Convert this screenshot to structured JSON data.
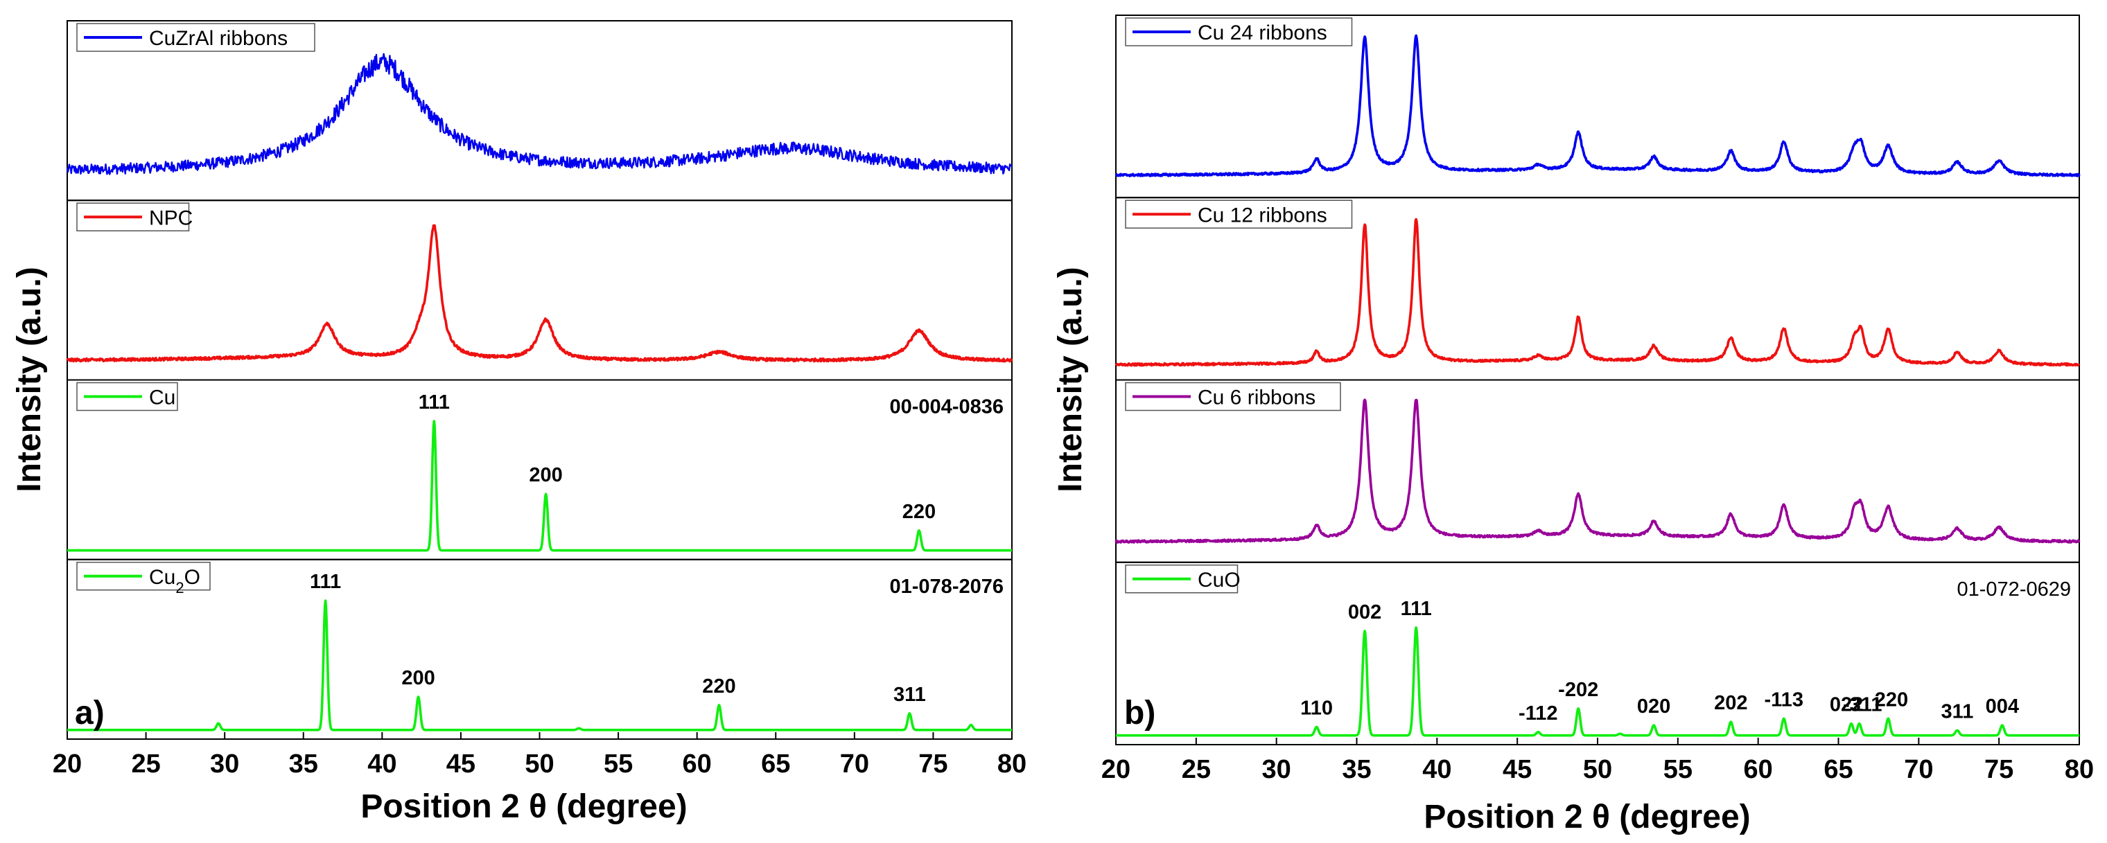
{
  "chart_data": [
    {
      "type": "line",
      "panel_label": "a)",
      "xlabel": "Position 2 θ (degree)",
      "ylabel": "Intensity (a.u.)",
      "xlim": [
        20,
        80
      ],
      "xticks": [
        "20",
        "25",
        "30",
        "35",
        "40",
        "45",
        "50",
        "55",
        "60",
        "65",
        "70",
        "75",
        "80"
      ],
      "subplots": [
        {
          "legend": "CuZrAl ribbons",
          "color": "#0000ee",
          "kind": "noisy",
          "ref_code": "",
          "baseline": 0.14,
          "noise": 0.045,
          "peaks": [
            {
              "x": 40.0,
              "h": 0.66,
              "w": 3.2
            },
            {
              "x": 66.0,
              "h": 0.14,
              "w": 6.0
            }
          ],
          "annotations": []
        },
        {
          "legend": "NPC",
          "color": "#ee1111",
          "kind": "smooth",
          "ref_code": "",
          "baseline": 0.09,
          "noise": 0.008,
          "peaks": [
            {
              "x": 36.5,
              "h": 0.2,
              "w": 0.6
            },
            {
              "x": 42.4,
              "h": 0.1,
              "w": 0.5
            },
            {
              "x": 43.3,
              "h": 0.78,
              "w": 0.45
            },
            {
              "x": 50.4,
              "h": 0.24,
              "w": 0.6
            },
            {
              "x": 61.4,
              "h": 0.05,
              "w": 1.0
            },
            {
              "x": 74.1,
              "h": 0.18,
              "w": 0.8
            },
            {
              "x": 35.0,
              "h": 0.02,
              "w": 8.0
            }
          ],
          "annotations": []
        },
        {
          "legend": "Cu",
          "color": "#11ee11",
          "kind": "stick",
          "ref_code": "00-004-0836",
          "baseline": 0.03,
          "noise": 0.0,
          "peaks": [
            {
              "x": 43.3,
              "h": 0.78,
              "w": 0.12
            },
            {
              "x": 50.4,
              "h": 0.34,
              "w": 0.12
            },
            {
              "x": 74.1,
              "h": 0.12,
              "w": 0.12
            }
          ],
          "annotations": [
            {
              "x": 43.3,
              "text": "111"
            },
            {
              "x": 50.4,
              "text": "200"
            },
            {
              "x": 74.1,
              "text": "220"
            }
          ]
        },
        {
          "legend": "Cu2O",
          "color": "#11ee11",
          "kind": "stick",
          "ref_code": "01-078-2076",
          "baseline": 0.03,
          "noise": 0.0,
          "peaks": [
            {
              "x": 29.6,
              "h": 0.04,
              "w": 0.12
            },
            {
              "x": 36.4,
              "h": 0.78,
              "w": 0.12
            },
            {
              "x": 42.3,
              "h": 0.2,
              "w": 0.12
            },
            {
              "x": 52.5,
              "h": 0.01,
              "w": 0.12
            },
            {
              "x": 61.4,
              "h": 0.15,
              "w": 0.12
            },
            {
              "x": 73.5,
              "h": 0.1,
              "w": 0.12
            },
            {
              "x": 77.4,
              "h": 0.03,
              "w": 0.12
            }
          ],
          "annotations": [
            {
              "x": 36.4,
              "text": "111"
            },
            {
              "x": 42.3,
              "text": "200"
            },
            {
              "x": 61.4,
              "text": "220"
            },
            {
              "x": 73.5,
              "text": "311"
            }
          ]
        }
      ]
    },
    {
      "type": "line",
      "panel_label": "b)",
      "xlabel": "Position 2 θ (degree)",
      "ylabel": "Intensity (a.u.)",
      "xlim": [
        20,
        80
      ],
      "xticks": [
        "20",
        "25",
        "30",
        "35",
        "40",
        "45",
        "50",
        "55",
        "60",
        "65",
        "70",
        "75",
        "80"
      ],
      "subplots": [
        {
          "legend": "Cu 24 ribbons",
          "color": "#0000ee",
          "kind": "smooth",
          "ref_code": "",
          "baseline": 0.1,
          "noise": 0.006,
          "peaks": [
            {
              "x": 32.5,
              "h": 0.08,
              "w": 0.25
            },
            {
              "x": 35.5,
              "h": 0.8,
              "w": 0.3
            },
            {
              "x": 38.7,
              "h": 0.8,
              "w": 0.3
            },
            {
              "x": 46.3,
              "h": 0.03,
              "w": 0.3
            },
            {
              "x": 48.8,
              "h": 0.22,
              "w": 0.3
            },
            {
              "x": 53.5,
              "h": 0.08,
              "w": 0.3
            },
            {
              "x": 58.3,
              "h": 0.12,
              "w": 0.3
            },
            {
              "x": 61.6,
              "h": 0.18,
              "w": 0.3
            },
            {
              "x": 66.0,
              "h": 0.12,
              "w": 0.35
            },
            {
              "x": 66.4,
              "h": 0.14,
              "w": 0.3
            },
            {
              "x": 68.1,
              "h": 0.16,
              "w": 0.35
            },
            {
              "x": 72.4,
              "h": 0.07,
              "w": 0.35
            },
            {
              "x": 75.0,
              "h": 0.08,
              "w": 0.4
            },
            {
              "x": 50.0,
              "h": 0.04,
              "w": 15.0
            }
          ],
          "annotations": []
        },
        {
          "legend": "Cu 12 ribbons",
          "color": "#ee1111",
          "kind": "smooth",
          "ref_code": "",
          "baseline": 0.06,
          "noise": 0.006,
          "peaks": [
            {
              "x": 32.5,
              "h": 0.07,
              "w": 0.2
            },
            {
              "x": 35.5,
              "h": 0.82,
              "w": 0.25
            },
            {
              "x": 38.7,
              "h": 0.85,
              "w": 0.25
            },
            {
              "x": 46.3,
              "h": 0.03,
              "w": 0.3
            },
            {
              "x": 48.8,
              "h": 0.26,
              "w": 0.25
            },
            {
              "x": 53.5,
              "h": 0.09,
              "w": 0.3
            },
            {
              "x": 58.3,
              "h": 0.14,
              "w": 0.3
            },
            {
              "x": 61.6,
              "h": 0.2,
              "w": 0.3
            },
            {
              "x": 66.0,
              "h": 0.12,
              "w": 0.3
            },
            {
              "x": 66.4,
              "h": 0.17,
              "w": 0.25
            },
            {
              "x": 68.1,
              "h": 0.2,
              "w": 0.3
            },
            {
              "x": 72.4,
              "h": 0.07,
              "w": 0.3
            },
            {
              "x": 75.0,
              "h": 0.08,
              "w": 0.35
            },
            {
              "x": 50.0,
              "h": 0.03,
              "w": 15.0
            }
          ],
          "annotations": []
        },
        {
          "legend": "Cu 6 ribbons",
          "color": "#990099",
          "kind": "smooth",
          "ref_code": "",
          "baseline": 0.09,
          "noise": 0.006,
          "peaks": [
            {
              "x": 32.5,
              "h": 0.08,
              "w": 0.25
            },
            {
              "x": 35.5,
              "h": 0.82,
              "w": 0.3
            },
            {
              "x": 38.7,
              "h": 0.82,
              "w": 0.3
            },
            {
              "x": 46.3,
              "h": 0.03,
              "w": 0.3
            },
            {
              "x": 48.8,
              "h": 0.25,
              "w": 0.3
            },
            {
              "x": 53.5,
              "h": 0.09,
              "w": 0.3
            },
            {
              "x": 58.3,
              "h": 0.14,
              "w": 0.3
            },
            {
              "x": 61.6,
              "h": 0.2,
              "w": 0.3
            },
            {
              "x": 66.0,
              "h": 0.14,
              "w": 0.3
            },
            {
              "x": 66.4,
              "h": 0.17,
              "w": 0.3
            },
            {
              "x": 68.1,
              "h": 0.19,
              "w": 0.35
            },
            {
              "x": 72.4,
              "h": 0.07,
              "w": 0.35
            },
            {
              "x": 75.0,
              "h": 0.08,
              "w": 0.4
            },
            {
              "x": 50.0,
              "h": 0.04,
              "w": 15.0
            }
          ],
          "annotations": []
        },
        {
          "legend": "CuO",
          "color": "#11ee11",
          "kind": "stick",
          "ref_code": "01-072-0629",
          "baseline": 0.03,
          "noise": 0.0,
          "peaks": [
            {
              "x": 32.5,
              "h": 0.05,
              "w": 0.12
            },
            {
              "x": 35.5,
              "h": 0.62,
              "w": 0.14
            },
            {
              "x": 38.7,
              "h": 0.64,
              "w": 0.14
            },
            {
              "x": 46.3,
              "h": 0.02,
              "w": 0.12
            },
            {
              "x": 48.8,
              "h": 0.16,
              "w": 0.12
            },
            {
              "x": 51.4,
              "h": 0.01,
              "w": 0.12
            },
            {
              "x": 53.5,
              "h": 0.06,
              "w": 0.12
            },
            {
              "x": 58.3,
              "h": 0.08,
              "w": 0.12
            },
            {
              "x": 61.6,
              "h": 0.1,
              "w": 0.12
            },
            {
              "x": 65.8,
              "h": 0.07,
              "w": 0.12
            },
            {
              "x": 66.3,
              "h": 0.07,
              "w": 0.12
            },
            {
              "x": 68.1,
              "h": 0.1,
              "w": 0.12
            },
            {
              "x": 72.4,
              "h": 0.03,
              "w": 0.12
            },
            {
              "x": 75.2,
              "h": 0.06,
              "w": 0.12
            }
          ],
          "annotations": [
            {
              "x": 32.5,
              "text": "110"
            },
            {
              "x": 35.5,
              "text": "002"
            },
            {
              "x": 38.7,
              "text": "111"
            },
            {
              "x": 46.3,
              "text": "-112"
            },
            {
              "x": 48.8,
              "text": "-202"
            },
            {
              "x": 53.5,
              "text": "020"
            },
            {
              "x": 58.3,
              "text": "202"
            },
            {
              "x": 61.6,
              "text": "-113"
            },
            {
              "x": 65.5,
              "text": "022"
            },
            {
              "x": 66.5,
              "text": "-311"
            },
            {
              "x": 68.3,
              "text": "220"
            },
            {
              "x": 72.4,
              "text": "311"
            },
            {
              "x": 75.2,
              "text": "004"
            }
          ]
        }
      ]
    }
  ]
}
